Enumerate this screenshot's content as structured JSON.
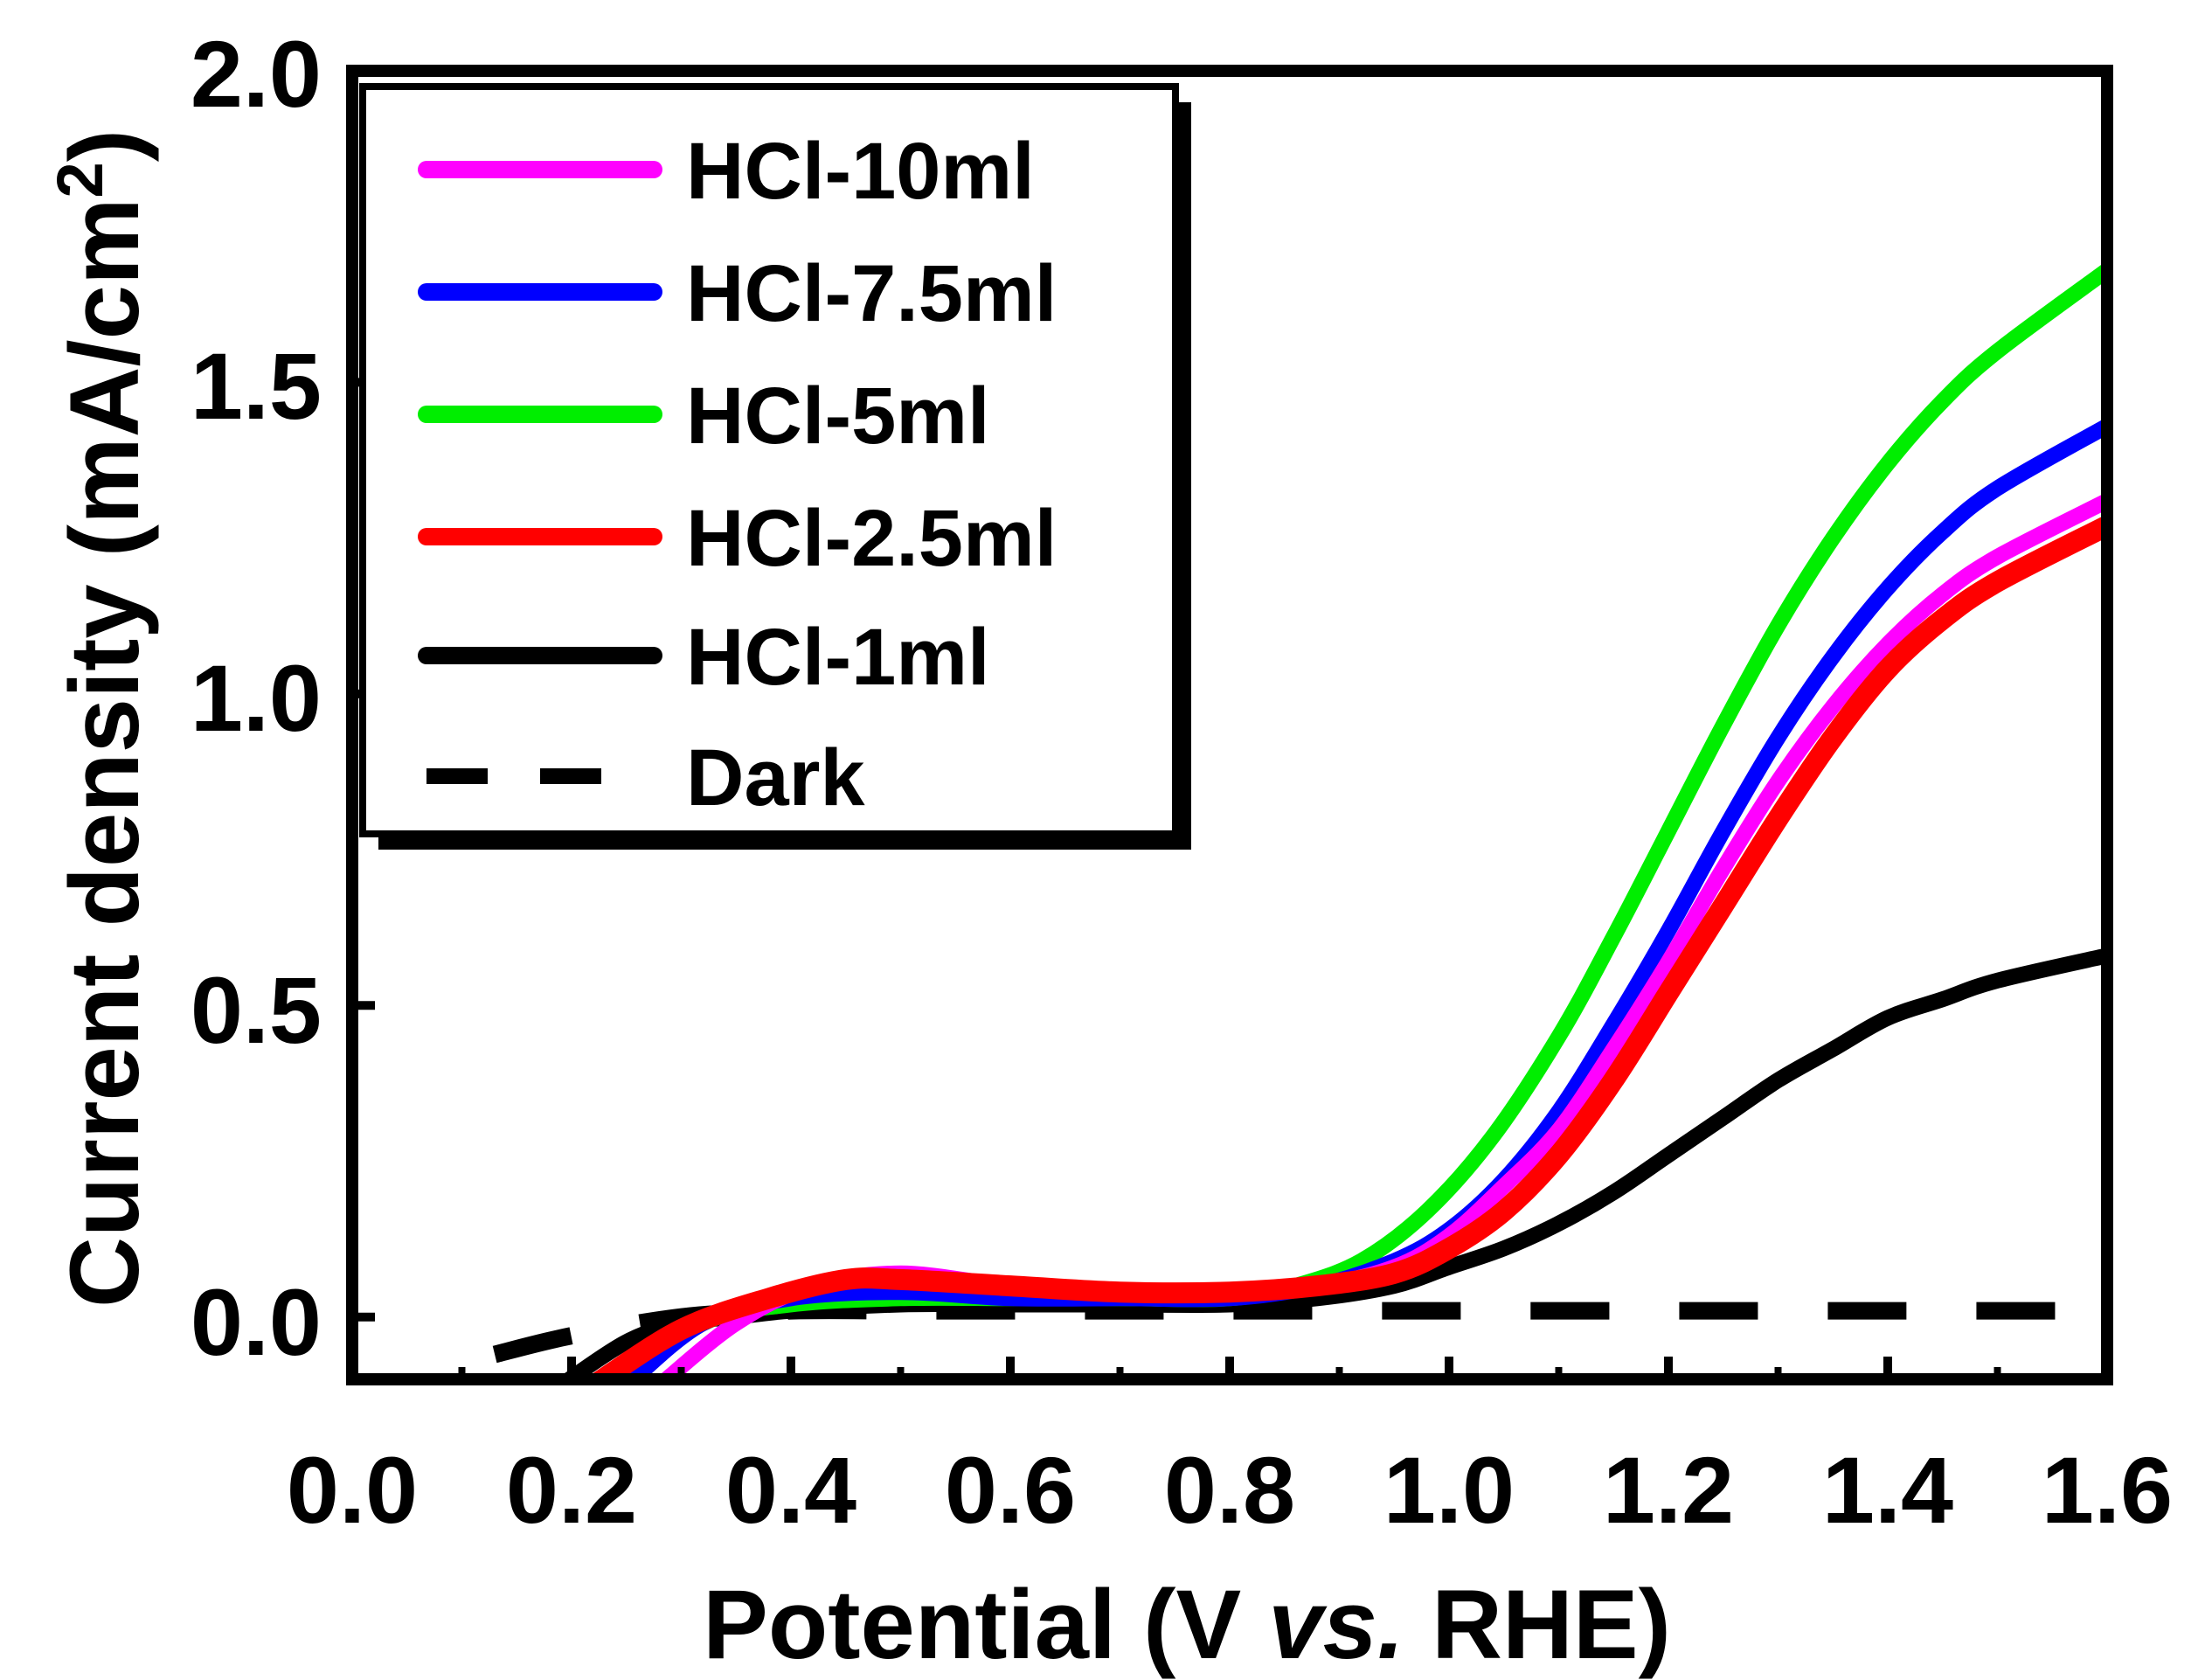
{
  "chart_data": {
    "type": "line",
    "title": "",
    "xlabel_parts": [
      "Potential (V ",
      "vs.",
      " RHE)"
    ],
    "ylabel": "Current density (mA/cm",
    "ylabel_sup": "2",
    "ylabel_close": ")",
    "xlim": [
      0.0,
      1.6
    ],
    "ylim": [
      -0.1,
      2.0
    ],
    "xticks": [
      "0.0",
      "0.2",
      "0.4",
      "0.6",
      "0.8",
      "1.0",
      "1.2",
      "1.4",
      "1.6"
    ],
    "yticks": [
      "0.0",
      "0.5",
      "1.0",
      "1.5",
      "2.0"
    ],
    "legend_position": "top-left",
    "series": [
      {
        "name": "HCl-10ml",
        "color": "#ff00ff",
        "style": "solid",
        "points": [
          [
            0.28,
            -0.11
          ],
          [
            0.35,
            -0.01
          ],
          [
            0.42,
            0.05
          ],
          [
            0.5,
            0.07
          ],
          [
            0.6,
            0.05
          ],
          [
            0.7,
            0.04
          ],
          [
            0.8,
            0.04
          ],
          [
            0.88,
            0.05
          ],
          [
            0.95,
            0.08
          ],
          [
            1.0,
            0.13
          ],
          [
            1.05,
            0.21
          ],
          [
            1.1,
            0.3
          ],
          [
            1.15,
            0.43
          ],
          [
            1.2,
            0.57
          ],
          [
            1.25,
            0.72
          ],
          [
            1.3,
            0.86
          ],
          [
            1.35,
            0.98
          ],
          [
            1.4,
            1.08
          ],
          [
            1.45,
            1.16
          ],
          [
            1.5,
            1.22
          ],
          [
            1.6,
            1.31
          ]
        ]
      },
      {
        "name": "HCl-7.5ml",
        "color": "#0000ff",
        "style": "solid",
        "points": [
          [
            0.25,
            -0.11
          ],
          [
            0.32,
            -0.01
          ],
          [
            0.4,
            0.03
          ],
          [
            0.5,
            0.04
          ],
          [
            0.6,
            0.03
          ],
          [
            0.7,
            0.03
          ],
          [
            0.8,
            0.03
          ],
          [
            0.88,
            0.05
          ],
          [
            0.95,
            0.09
          ],
          [
            1.0,
            0.14
          ],
          [
            1.05,
            0.22
          ],
          [
            1.1,
            0.33
          ],
          [
            1.15,
            0.47
          ],
          [
            1.2,
            0.62
          ],
          [
            1.25,
            0.78
          ],
          [
            1.3,
            0.93
          ],
          [
            1.35,
            1.06
          ],
          [
            1.4,
            1.17
          ],
          [
            1.45,
            1.26
          ],
          [
            1.5,
            1.33
          ],
          [
            1.6,
            1.43
          ]
        ]
      },
      {
        "name": "HCl-5ml",
        "color": "#00ee00",
        "style": "solid",
        "points": [
          [
            0.25,
            -0.11
          ],
          [
            0.32,
            -0.01
          ],
          [
            0.4,
            0.02
          ],
          [
            0.5,
            0.03
          ],
          [
            0.6,
            0.03
          ],
          [
            0.7,
            0.03
          ],
          [
            0.8,
            0.03
          ],
          [
            0.86,
            0.05
          ],
          [
            0.92,
            0.09
          ],
          [
            0.98,
            0.17
          ],
          [
            1.04,
            0.29
          ],
          [
            1.1,
            0.45
          ],
          [
            1.15,
            0.61
          ],
          [
            1.2,
            0.78
          ],
          [
            1.25,
            0.95
          ],
          [
            1.3,
            1.11
          ],
          [
            1.35,
            1.25
          ],
          [
            1.4,
            1.37
          ],
          [
            1.45,
            1.47
          ],
          [
            1.5,
            1.55
          ],
          [
            1.6,
            1.68
          ]
        ]
      },
      {
        "name": "HCl-2.5ml",
        "color": "#ff0000",
        "style": "solid",
        "points": [
          [
            0.22,
            -0.11
          ],
          [
            0.3,
            -0.02
          ],
          [
            0.38,
            0.03
          ],
          [
            0.45,
            0.06
          ],
          [
            0.5,
            0.06
          ],
          [
            0.6,
            0.05
          ],
          [
            0.7,
            0.04
          ],
          [
            0.8,
            0.04
          ],
          [
            0.88,
            0.05
          ],
          [
            0.95,
            0.07
          ],
          [
            1.0,
            0.11
          ],
          [
            1.05,
            0.17
          ],
          [
            1.1,
            0.26
          ],
          [
            1.15,
            0.38
          ],
          [
            1.2,
            0.52
          ],
          [
            1.25,
            0.66
          ],
          [
            1.3,
            0.8
          ],
          [
            1.35,
            0.93
          ],
          [
            1.4,
            1.04
          ],
          [
            1.45,
            1.12
          ],
          [
            1.5,
            1.18
          ],
          [
            1.6,
            1.27
          ]
        ]
      },
      {
        "name": "HCl-1ml",
        "color": "#000000",
        "style": "solid",
        "points": [
          [
            0.19,
            -0.11
          ],
          [
            0.25,
            -0.04
          ],
          [
            0.3,
            -0.01
          ],
          [
            0.35,
            0.0
          ],
          [
            0.4,
            0.01
          ],
          [
            0.5,
            0.02
          ],
          [
            0.6,
            0.02
          ],
          [
            0.7,
            0.02
          ],
          [
            0.8,
            0.02
          ],
          [
            0.88,
            0.03
          ],
          [
            0.95,
            0.05
          ],
          [
            1.0,
            0.08
          ],
          [
            1.05,
            0.11
          ],
          [
            1.1,
            0.15
          ],
          [
            1.15,
            0.2
          ],
          [
            1.2,
            0.26
          ],
          [
            1.25,
            0.32
          ],
          [
            1.3,
            0.38
          ],
          [
            1.35,
            0.43
          ],
          [
            1.4,
            0.48
          ],
          [
            1.45,
            0.51
          ],
          [
            1.5,
            0.54
          ],
          [
            1.6,
            0.58
          ]
        ]
      },
      {
        "name": "Dark",
        "color": "#000000",
        "style": "dashed",
        "points": [
          [
            0.13,
            -0.06
          ],
          [
            0.2,
            -0.03
          ],
          [
            0.3,
            0.0
          ],
          [
            0.4,
            0.01
          ],
          [
            0.5,
            0.01
          ],
          [
            0.6,
            0.01
          ],
          [
            0.7,
            0.01
          ],
          [
            0.8,
            0.01
          ],
          [
            0.9,
            0.01
          ],
          [
            1.0,
            0.01
          ],
          [
            1.2,
            0.01
          ],
          [
            1.4,
            0.01
          ],
          [
            1.6,
            0.01
          ]
        ]
      }
    ]
  }
}
